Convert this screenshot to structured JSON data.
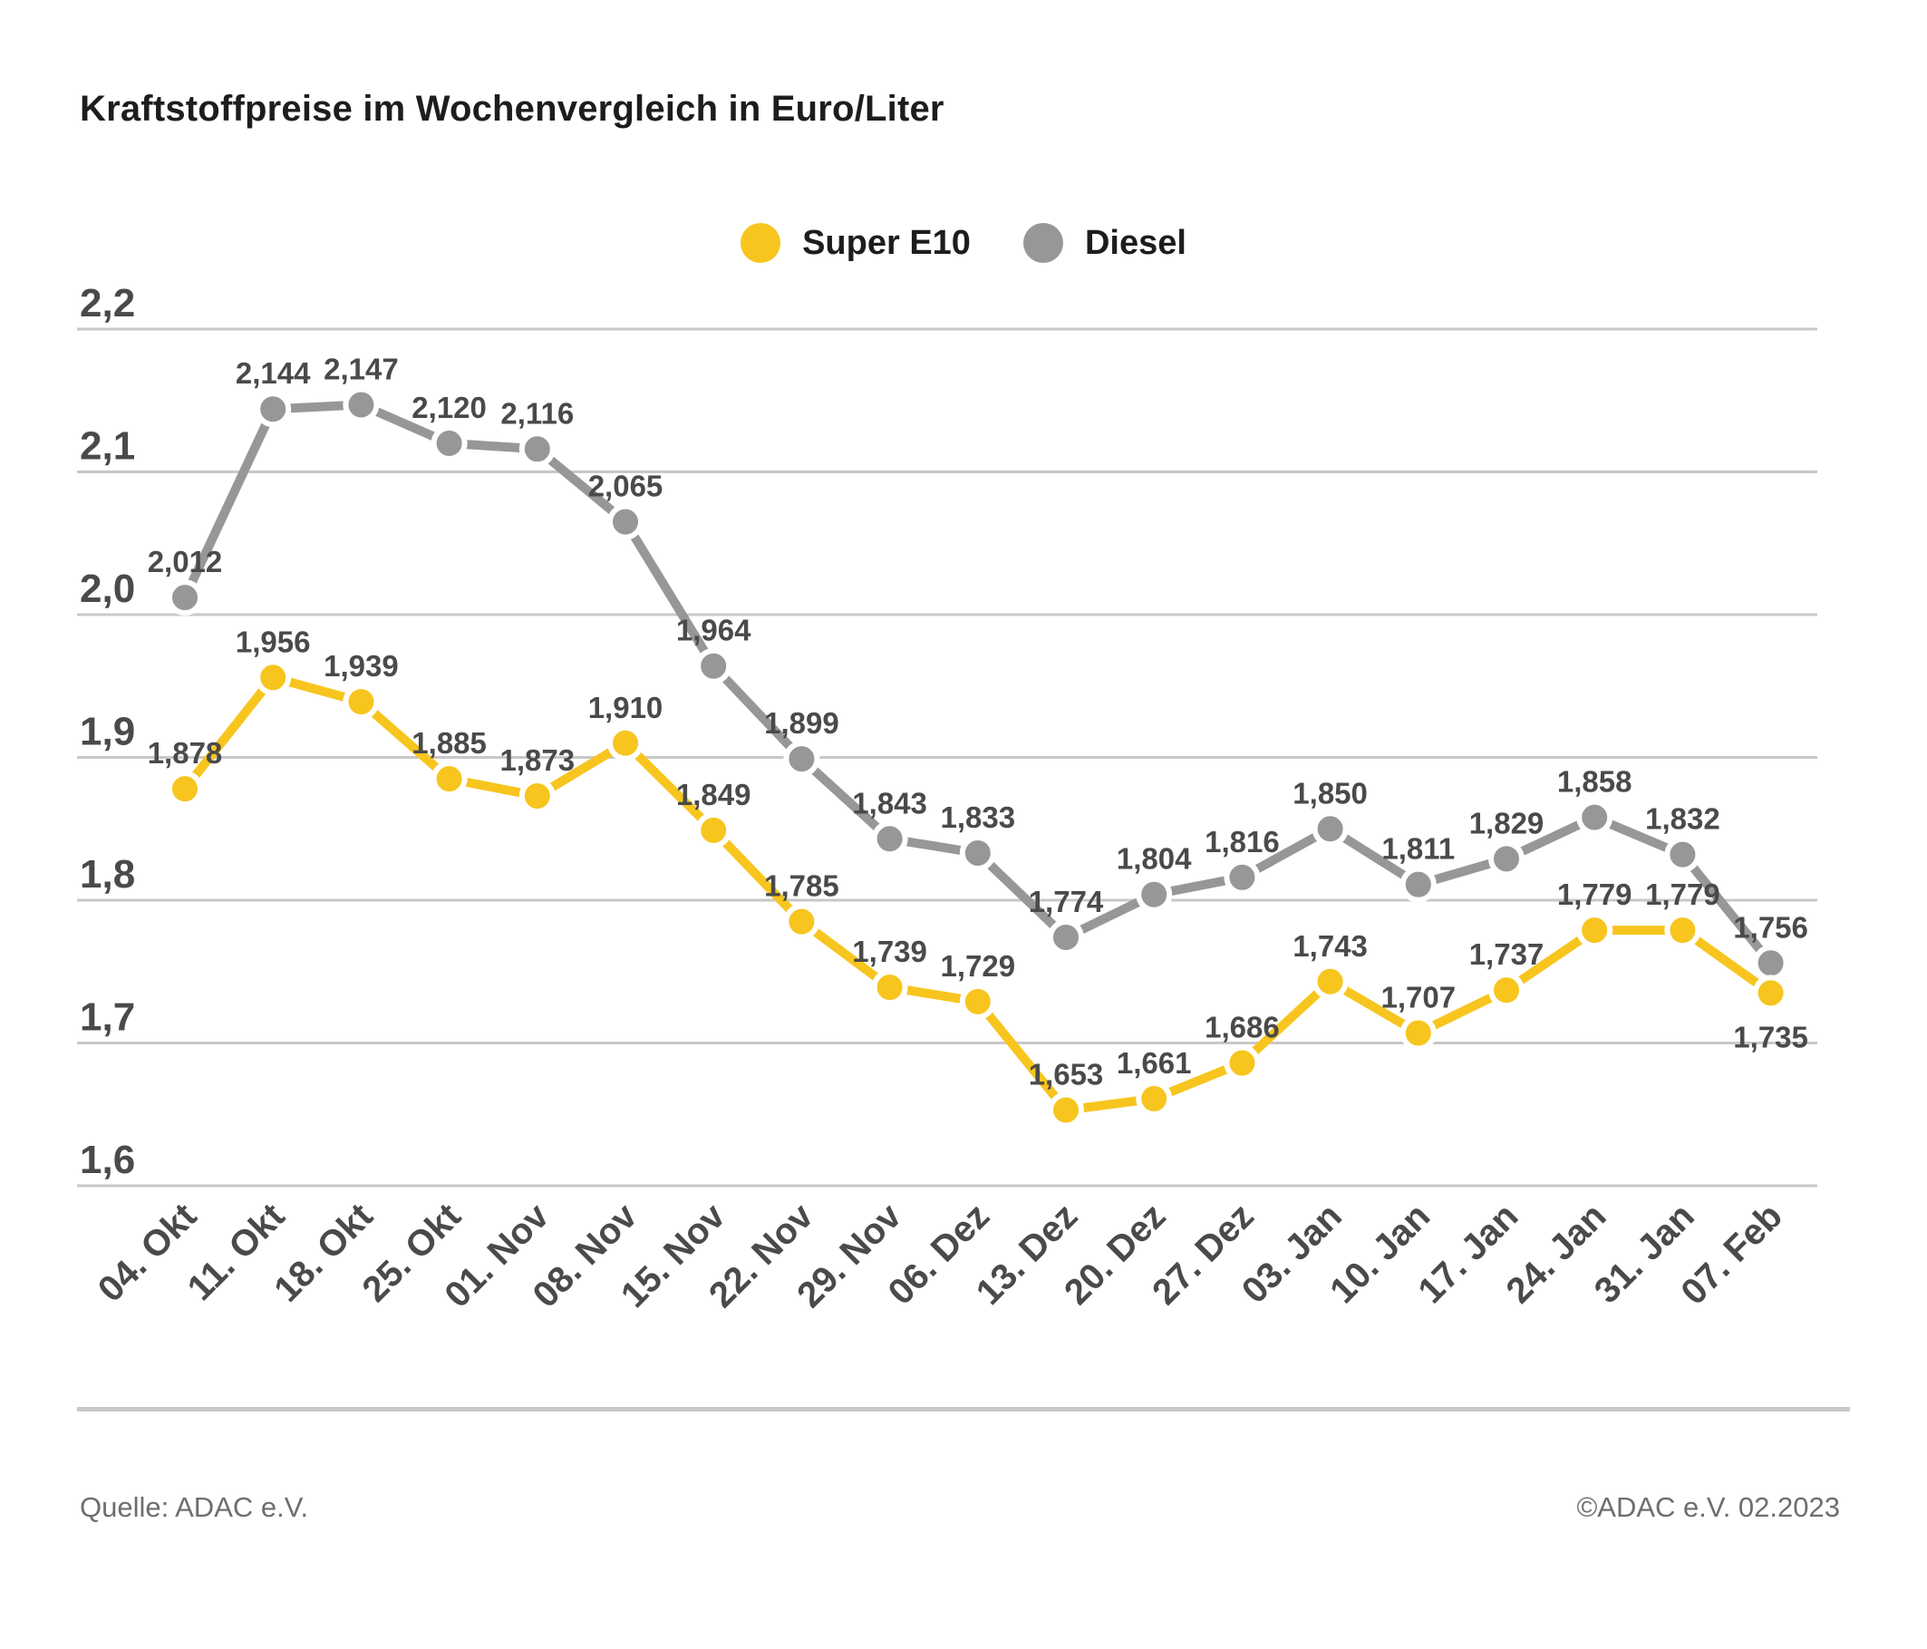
{
  "chart_data": {
    "type": "line",
    "title": "Kraftstoffpreise im Wochenvergleich in Euro/Liter",
    "categories": [
      "04. Okt",
      "11. Okt",
      "18. Okt",
      "25. Okt",
      "01. Nov",
      "08. Nov",
      "15. Nov",
      "22. Nov",
      "29. Nov",
      "06. Dez",
      "13. Dez",
      "20. Dez",
      "27. Dez",
      "03. Jan",
      "10. Jan",
      "17. Jan",
      "24. Jan",
      "31. Jan",
      "07. Feb"
    ],
    "series": [
      {
        "name": "Super E10",
        "color": "#F7C51E",
        "values": [
          1.878,
          1.956,
          1.939,
          1.885,
          1.873,
          1.91,
          1.849,
          1.785,
          1.739,
          1.729,
          1.653,
          1.661,
          1.686,
          1.743,
          1.707,
          1.737,
          1.779,
          1.779,
          1.735
        ]
      },
      {
        "name": "Diesel",
        "color": "#979797",
        "values": [
          2.012,
          2.144,
          2.147,
          2.12,
          2.116,
          2.065,
          1.964,
          1.899,
          1.843,
          1.833,
          1.774,
          1.804,
          1.816,
          1.85,
          1.811,
          1.829,
          1.858,
          1.832,
          1.756
        ]
      }
    ],
    "yticks": [
      2.2,
      2.1,
      2.0,
      1.9,
      1.8,
      1.7,
      1.6
    ],
    "ylim": [
      1.6,
      2.2
    ],
    "decimal_separator": ",",
    "grid": true,
    "legend_position": "top-center",
    "value_labels": true
  },
  "footer": {
    "source": "Quelle: ADAC e.V.",
    "copyright": "©ADAC e.V. 02.2023"
  },
  "colors": {
    "grid": "#C8C8C8",
    "axis_text": "#4A4A4A",
    "label_text": "#4A4A4A",
    "title_text": "#1D1D1B",
    "footer_text": "#6E6E6E",
    "divider": "#C9C9C9",
    "background": "#FFFFFF"
  }
}
